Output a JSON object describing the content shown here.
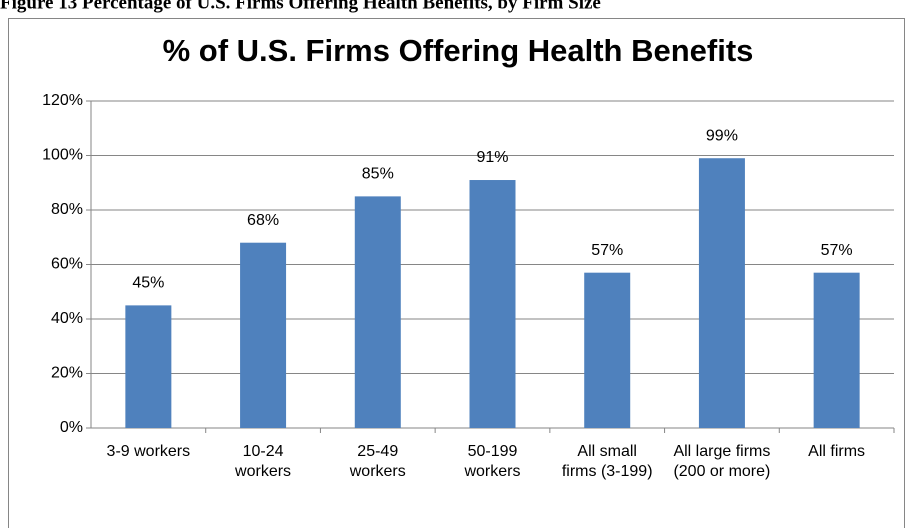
{
  "figure_caption": "Figure 13 Percentage of U.S. Firms Offering Health Benefits, by Firm Size",
  "chart_data": {
    "type": "bar",
    "title": "% of U.S. Firms Offering Health Benefits",
    "categories": [
      "3-9 workers",
      "10-24 workers",
      "25-49 workers",
      "50-199 workers",
      "All small firms (3-199)",
      "All large firms (200 or more)",
      "All firms"
    ],
    "values": [
      45,
      68,
      85,
      91,
      57,
      99,
      57
    ],
    "value_labels": [
      "45%",
      "68%",
      "85%",
      "91%",
      "57%",
      "99%",
      "57%"
    ],
    "color": "#4f81bd",
    "ylim": [
      0,
      120
    ],
    "yticks": [
      {
        "value": 0,
        "label": "0%"
      },
      {
        "value": 20,
        "label": "20%"
      },
      {
        "value": 40,
        "label": "40%"
      },
      {
        "value": 60,
        "label": "60%"
      },
      {
        "value": 80,
        "label": "80%"
      },
      {
        "value": 100,
        "label": "100%"
      },
      {
        "value": 120,
        "label": "120%"
      }
    ],
    "grid": true
  }
}
